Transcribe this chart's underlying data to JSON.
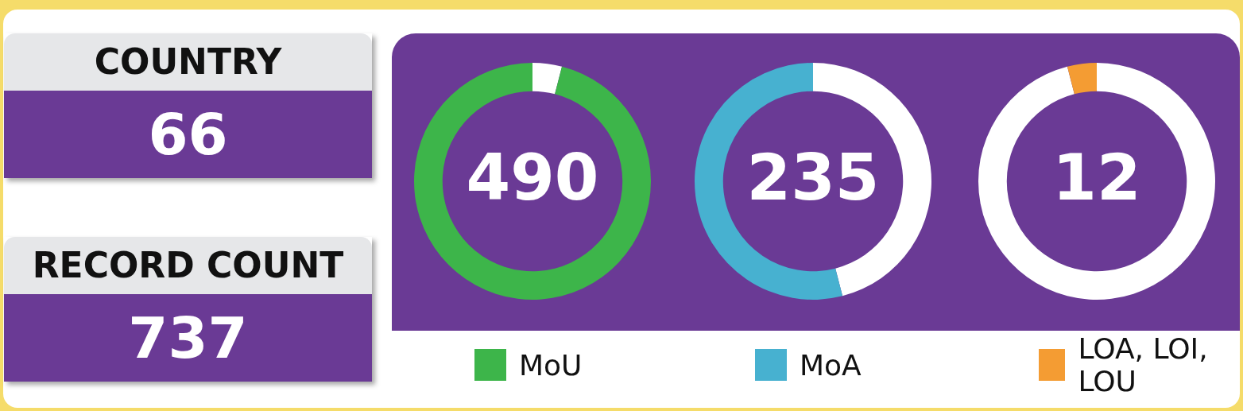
{
  "chart_data": [
    {
      "type": "other",
      "title": "COUNTRY",
      "annotations": [
        "66"
      ]
    },
    {
      "type": "other",
      "title": "RECORD COUNT",
      "annotations": [
        "737"
      ]
    },
    {
      "type": "donut",
      "categories": [
        null,
        "MoU"
      ],
      "values": [
        4,
        96
      ],
      "colors": [
        "#ffffff",
        "#3db54a"
      ],
      "annotations": [
        "490"
      ],
      "legend": "bottom"
    },
    {
      "type": "donut",
      "categories": [
        null,
        "MoA"
      ],
      "values": [
        46,
        54
      ],
      "colors": [
        "#ffffff",
        "#47b1d0"
      ],
      "annotations": [
        "235"
      ],
      "legend": "bottom"
    },
    {
      "type": "donut",
      "categories": [
        null,
        "LOA, LOI, LOU"
      ],
      "values": [
        96,
        4
      ],
      "colors": [
        "#ffffff",
        "#f49c33"
      ],
      "annotations": [
        "12"
      ],
      "legend": "bottom"
    }
  ]
}
